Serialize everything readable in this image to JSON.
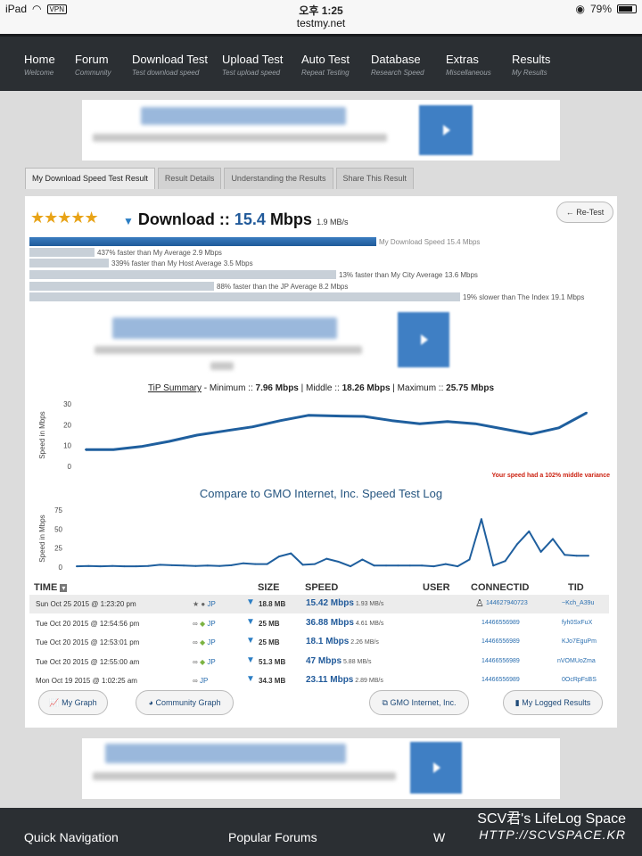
{
  "status_bar": {
    "device": "iPad",
    "vpn": "VPN",
    "time": "오후 1:25",
    "url": "testmy.net",
    "battery": "79%"
  },
  "nav": [
    {
      "label": "Home",
      "sub": "Welcome"
    },
    {
      "label": "Forum",
      "sub": "Community"
    },
    {
      "label": "Download Test",
      "sub": "Test download speed"
    },
    {
      "label": "Upload Test",
      "sub": "Test upload speed"
    },
    {
      "label": "Auto Test",
      "sub": "Repeat Testing"
    },
    {
      "label": "Database",
      "sub": "Research Speed"
    },
    {
      "label": "Extras",
      "sub": "Miscellaneous"
    },
    {
      "label": "Results",
      "sub": "My Results"
    }
  ],
  "tabs": [
    "My Download Speed Test Result",
    "Result Details",
    "Understanding the Results",
    "Share This Result"
  ],
  "result": {
    "stars": "★★★★★",
    "rating": 4.5,
    "heading": "Download :: ",
    "speed": "15.4",
    "unit": " Mbps",
    "mbs": "1.9 MB/s",
    "retest": "← Re-Test"
  },
  "comparisons": [
    {
      "text": "My Download Speed 15.4 Mbps",
      "value": 15.4,
      "color": "#2a68ad"
    },
    {
      "text": "437% faster than My Average 2.9 Mbps",
      "value": 2.9,
      "color": "#c8d0d8"
    },
    {
      "text": "339% faster than My Host Average 3.5 Mbps",
      "value": 3.5,
      "color": "#c8d0d8"
    },
    {
      "text": "13% faster than My City Average 13.6 Mbps",
      "value": 13.6,
      "color": "#c8d0d8"
    },
    {
      "text": "88% faster than the JP Average 8.2 Mbps",
      "value": 8.2,
      "color": "#c8d0d8"
    },
    {
      "text": "19% slower than The Index 19.1 Mbps",
      "value": 19.1,
      "color": "#c8d0d8"
    }
  ],
  "tip_summary": {
    "label": "TiP Summary",
    "min_label": " - Minimum :: ",
    "min": "7.96 Mbps",
    "mid_label": " | Middle :: ",
    "mid": "18.26 Mbps",
    "max_label": " | Maximum :: ",
    "max": "25.75 Mbps"
  },
  "variance_note": "Your speed had a 102% middle variance",
  "compare_title": "Compare to GMO Internet, Inc. Speed Test Log",
  "chart_data": [
    {
      "type": "line",
      "ylabel": "Speed in Mbps",
      "ylim": [
        0,
        30
      ],
      "yticks": [
        "0",
        "10",
        "20",
        "30"
      ],
      "x": [
        1,
        2,
        3,
        4,
        5,
        6,
        7,
        8,
        9,
        10,
        11,
        12,
        13,
        14,
        15,
        16,
        17,
        18,
        19
      ],
      "values": [
        8,
        8,
        9.5,
        12,
        15,
        17,
        19,
        22,
        24.5,
        24.2,
        24,
        22,
        20.5,
        21.5,
        20.5,
        18,
        15.5,
        18.5,
        25.75
      ],
      "color": "#1f5f9e"
    },
    {
      "type": "line",
      "ylabel": "Speed in Mbps",
      "ylim": [
        0,
        75
      ],
      "yticks": [
        "0",
        "25",
        "50",
        "75"
      ],
      "x": [
        1,
        2,
        3,
        4,
        5,
        6,
        7,
        8,
        9,
        10,
        11,
        12,
        13,
        14,
        15,
        16,
        17,
        18,
        19,
        20,
        21,
        22,
        23,
        24,
        25,
        26,
        27,
        28,
        29,
        30,
        31,
        32,
        33,
        34,
        35,
        36,
        37,
        38,
        39,
        40,
        41,
        42,
        43,
        44
      ],
      "values": [
        1,
        1.5,
        1,
        1.5,
        1,
        1,
        1.5,
        3,
        2.5,
        2,
        1.5,
        2,
        1.5,
        2.5,
        5,
        4,
        4,
        14,
        18,
        3,
        4,
        11,
        7,
        1,
        10,
        2,
        2,
        2,
        2,
        2,
        1,
        4,
        1,
        10,
        63,
        2,
        8,
        30,
        47,
        20,
        37,
        16,
        15,
        15
      ],
      "color": "#1f5f9e"
    }
  ],
  "table": {
    "headers": {
      "time": "TIME",
      "size": "SIZE",
      "speed": "SPEED",
      "user": "USER",
      "connectid": "CONNECTID",
      "tid": "TID"
    },
    "rows": [
      {
        "time": "Sun Oct 25 2015 @ 1:23:20 pm",
        "icons": "★ ",
        "region": "JP",
        "size": "18.8 MB",
        "speed": "15.42 Mbps",
        "mbs": " 1.93 MB/s",
        "connectid": "144627940723",
        "tid": "~Kch_A39u"
      },
      {
        "time": "Tue Oct 20 2015 @ 12:54:56 pm",
        "icons": "",
        "region": "JP",
        "size": "25 MB",
        "speed": "36.88 Mbps",
        "mbs": " 4.61 MB/s",
        "connectid": "14466556989",
        "tid": "fyh0SxFuX"
      },
      {
        "time": "Tue Oct 20 2015 @ 12:53:01 pm",
        "icons": "",
        "region": "JP",
        "size": "25 MB",
        "speed": "18.1 Mbps",
        "mbs": " 2.26 MB/s",
        "connectid": "14466556989",
        "tid": "KJo7EguPm"
      },
      {
        "time": "Tue Oct 20 2015 @ 12:55:00 am",
        "icons": "",
        "region": "JP",
        "size": "51.3 MB",
        "speed": "47 Mbps",
        "mbs": " 5.88 MB/s",
        "connectid": "14466556989",
        "tid": "nVOMUoZma"
      },
      {
        "time": "Mon Oct 19 2015 @ 1:02:25 am",
        "icons": "",
        "region": "JP",
        "size": "34.3 MB",
        "speed": "23.11 Mbps",
        "mbs": " 2.89 MB/s",
        "connectid": "14466556989",
        "tid": "0OcRpFsBS"
      }
    ]
  },
  "buttons": {
    "my_graph": "My Graph",
    "community_graph": "Community Graph",
    "gmo": "GMO Internet, Inc.",
    "logged": "My Logged Results"
  },
  "footer": {
    "quick_nav": "Quick Navigation",
    "popular_forums": "Popular Forums",
    "partial": "W",
    "watermark1": "SCV君's LifeLog Space",
    "watermark2": "HTTP://SCVSPACE.KR"
  }
}
